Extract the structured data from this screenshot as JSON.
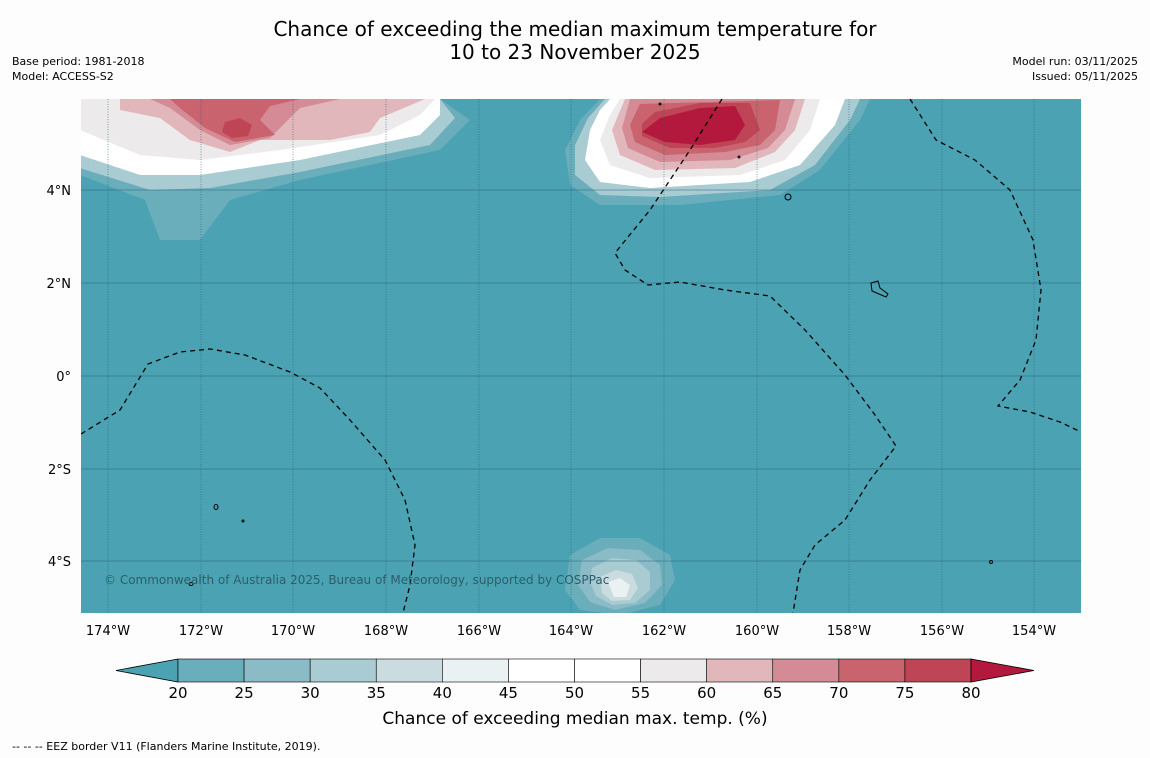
{
  "title": {
    "line1": "Chance of exceeding the median maximum temperature for",
    "line2": "10 to 23 November 2025"
  },
  "meta_left": {
    "base_period": "Base period: 1981-2018",
    "model": "Model: ACCESS-S2"
  },
  "meta_right": {
    "model_run": "Model run: 03/11/2025",
    "issued": "Issued: 05/11/2025"
  },
  "map": {
    "lon_labels": [
      "174°W",
      "172°W",
      "170°W",
      "168°W",
      "166°W",
      "164°W",
      "162°W",
      "160°W",
      "158°W",
      "156°W",
      "154°W"
    ],
    "lat_labels": [
      "4°N",
      "2°N",
      "0°",
      "2°S",
      "4°S"
    ],
    "copyright": "© Commonwealth of Australia 2025, Bureau of Meteorology, supported by COSPPac",
    "colors": {
      "ocean": "#4aa2b3",
      "below": "#6aadbb",
      "above": "#b3193c"
    }
  },
  "colorbar": {
    "ticks": [
      "20",
      "25",
      "30",
      "35",
      "40",
      "45",
      "50",
      "55",
      "60",
      "65",
      "70",
      "75",
      "80"
    ],
    "colors": [
      "#4aa2b3",
      "#6aadbb",
      "#8bbbc7",
      "#a9cbd2",
      "#cadcdf",
      "#e9f1f2",
      "#ffffff",
      "#ffffff",
      "#eceaea",
      "#e1b7bc",
      "#d48b95",
      "#c9636e",
      "#bf4456",
      "#b3193c"
    ],
    "label": "Chance of exceeding median max. temp. (%)"
  },
  "footnote": "--  --  -- EEZ border V11 (Flanders Marine Institute, 2019)."
}
